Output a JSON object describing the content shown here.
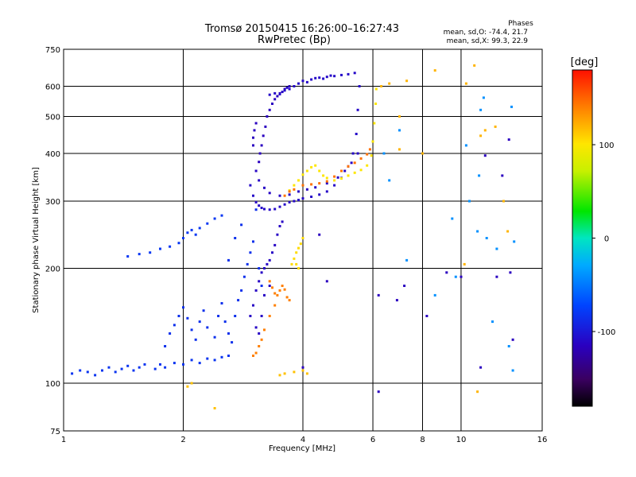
{
  "colors": {
    "background": "#ffffff",
    "grid": "#000000"
  },
  "chart_data": {
    "type": "scatter",
    "title": "Tromsø 20150415 16:26:00–16:27:43",
    "subtitle": "RwPretec (Bp)",
    "xlabel": "Frequency [MHz]",
    "ylabel": "Stationary phase Virtual Height [km]",
    "x_scale": "log",
    "y_scale": "log",
    "xlim": [
      1,
      16
    ],
    "ylim": [
      75,
      750
    ],
    "x_ticks": [
      1,
      2,
      4,
      6,
      8,
      10,
      16
    ],
    "x_tick_labels": [
      "1",
      "2",
      "4",
      "6",
      "8",
      "10",
      "16"
    ],
    "y_ticks": [
      75,
      100,
      200,
      300,
      400,
      500,
      600,
      750
    ],
    "y_tick_labels": [
      "75",
      "100",
      "200",
      "300",
      "400",
      "500",
      "600",
      "750"
    ],
    "grid": true,
    "stats": {
      "heading": "Phases",
      "line1": "mean, sd,O:  -74.4, 21.7",
      "line2": "mean, sd,X:  99.3, 22.9"
    },
    "colorbar": {
      "label": "[deg]",
      "range": [
        -180,
        180
      ],
      "tick_values": [
        100,
        0,
        -100
      ],
      "tick_labels": [
        "100",
        "0",
        "-100"
      ]
    },
    "traces": [
      {
        "kind": "o_bottom",
        "phase": -82,
        "points": [
          [
            1.05,
            106
          ],
          [
            1.1,
            108
          ],
          [
            1.15,
            107
          ],
          [
            1.2,
            105
          ],
          [
            1.25,
            108
          ],
          [
            1.3,
            110
          ],
          [
            1.35,
            107
          ],
          [
            1.4,
            109
          ],
          [
            1.45,
            111
          ],
          [
            1.5,
            108
          ],
          [
            1.55,
            110
          ],
          [
            1.6,
            112
          ],
          [
            1.7,
            109
          ],
          [
            1.75,
            112
          ],
          [
            1.8,
            110
          ],
          [
            1.9,
            113
          ],
          [
            2.0,
            112
          ],
          [
            2.1,
            115
          ],
          [
            2.2,
            113
          ],
          [
            2.3,
            116
          ],
          [
            2.4,
            115
          ],
          [
            2.5,
            117
          ],
          [
            2.6,
            118
          ]
        ]
      },
      {
        "kind": "o_low_spread",
        "phase": -85,
        "points": [
          [
            1.8,
            125
          ],
          [
            1.85,
            135
          ],
          [
            1.9,
            142
          ],
          [
            1.95,
            150
          ],
          [
            2.0,
            158
          ],
          [
            2.05,
            148
          ],
          [
            2.1,
            138
          ],
          [
            2.15,
            130
          ],
          [
            2.2,
            145
          ],
          [
            2.25,
            155
          ],
          [
            2.3,
            140
          ],
          [
            2.4,
            132
          ],
          [
            2.45,
            150
          ],
          [
            2.5,
            162
          ],
          [
            2.55,
            145
          ],
          [
            2.6,
            135
          ],
          [
            2.65,
            128
          ],
          [
            2.7,
            150
          ],
          [
            2.75,
            165
          ],
          [
            2.8,
            175
          ],
          [
            2.85,
            190
          ],
          [
            2.9,
            205
          ],
          [
            2.95,
            220
          ],
          [
            3.0,
            235
          ],
          [
            2.7,
            240
          ],
          [
            2.6,
            210
          ],
          [
            2.8,
            260
          ],
          [
            3.05,
            285
          ],
          [
            3.1,
            200
          ],
          [
            3.15,
            180
          ]
        ]
      },
      {
        "kind": "o_sporadic",
        "phase": -80,
        "points": [
          [
            1.45,
            215
          ],
          [
            1.55,
            218
          ],
          [
            1.65,
            220
          ],
          [
            1.75,
            225
          ],
          [
            1.85,
            228
          ],
          [
            1.95,
            233
          ],
          [
            2.0,
            240
          ],
          [
            2.05,
            248
          ],
          [
            2.1,
            252
          ],
          [
            2.15,
            245
          ],
          [
            2.2,
            255
          ],
          [
            2.3,
            262
          ],
          [
            2.4,
            270
          ],
          [
            2.5,
            275
          ]
        ]
      },
      {
        "kind": "o_f2_low",
        "phase": -110,
        "points": [
          [
            2.95,
            330
          ],
          [
            3.0,
            310
          ],
          [
            3.05,
            298
          ],
          [
            3.1,
            292
          ],
          [
            3.15,
            288
          ],
          [
            3.2,
            286
          ],
          [
            3.3,
            285
          ],
          [
            3.4,
            286
          ],
          [
            3.5,
            290
          ],
          [
            3.6,
            294
          ],
          [
            3.7,
            298
          ],
          [
            3.8,
            300
          ],
          [
            3.9,
            302
          ],
          [
            4.0,
            305
          ],
          [
            4.2,
            308
          ],
          [
            4.4,
            312
          ],
          [
            4.6,
            318
          ],
          [
            4.8,
            330
          ],
          [
            5.0,
            345
          ],
          [
            5.2,
            370
          ],
          [
            5.35,
            400
          ],
          [
            5.45,
            450
          ],
          [
            5.5,
            520
          ],
          [
            5.55,
            600
          ]
        ]
      },
      {
        "kind": "o_f2_mid",
        "phase": -112,
        "points": [
          [
            3.05,
            360
          ],
          [
            3.1,
            340
          ],
          [
            3.2,
            325
          ],
          [
            3.3,
            315
          ],
          [
            3.5,
            310
          ],
          [
            3.7,
            312
          ],
          [
            3.9,
            318
          ],
          [
            4.1,
            322
          ],
          [
            4.3,
            326
          ],
          [
            4.6,
            334
          ],
          [
            4.9,
            346
          ],
          [
            5.1,
            360
          ],
          [
            5.3,
            378
          ],
          [
            5.5,
            400
          ]
        ]
      },
      {
        "kind": "o_f2_vert",
        "phase": -115,
        "points": [
          [
            3.0,
            420
          ],
          [
            3.0,
            440
          ],
          [
            3.02,
            460
          ],
          [
            3.05,
            480
          ],
          [
            3.1,
            380
          ],
          [
            3.12,
            400
          ],
          [
            3.15,
            420
          ],
          [
            3.18,
            445
          ],
          [
            3.22,
            470
          ],
          [
            3.25,
            500
          ],
          [
            3.3,
            520
          ],
          [
            3.35,
            540
          ],
          [
            3.4,
            555
          ],
          [
            3.45,
            565
          ],
          [
            3.5,
            575
          ],
          [
            3.6,
            590
          ],
          [
            3.7,
            600
          ]
        ]
      },
      {
        "kind": "o_top",
        "phase": -110,
        "points": [
          [
            3.3,
            570
          ],
          [
            3.4,
            575
          ],
          [
            3.5,
            572
          ],
          [
            3.55,
            580
          ],
          [
            3.6,
            585
          ],
          [
            3.65,
            595
          ],
          [
            3.7,
            590
          ],
          [
            3.8,
            600
          ],
          [
            3.9,
            610
          ],
          [
            4.0,
            620
          ],
          [
            4.1,
            615
          ],
          [
            4.2,
            625
          ],
          [
            4.3,
            630
          ],
          [
            4.4,
            632
          ],
          [
            4.5,
            628
          ],
          [
            4.6,
            635
          ],
          [
            4.7,
            640
          ],
          [
            4.8,
            638
          ],
          [
            5.0,
            642
          ],
          [
            5.2,
            645
          ],
          [
            5.4,
            650
          ]
        ]
      },
      {
        "kind": "o_e_column",
        "phase": -112,
        "points": [
          [
            2.95,
            150
          ],
          [
            3.0,
            160
          ],
          [
            3.05,
            175
          ],
          [
            3.1,
            185
          ],
          [
            3.15,
            195
          ],
          [
            3.2,
            200
          ],
          [
            3.25,
            205
          ],
          [
            3.3,
            210
          ],
          [
            3.35,
            220
          ],
          [
            3.4,
            230
          ],
          [
            3.45,
            245
          ],
          [
            3.5,
            258
          ],
          [
            3.55,
            265
          ],
          [
            3.2,
            170
          ],
          [
            3.3,
            180
          ],
          [
            3.15,
            150
          ],
          [
            3.1,
            135
          ],
          [
            3.05,
            140
          ]
        ]
      },
      {
        "kind": "x_f2",
        "phase": 100,
        "points": [
          [
            3.7,
            320
          ],
          [
            3.8,
            330
          ],
          [
            3.9,
            340
          ],
          [
            4.0,
            352
          ],
          [
            4.1,
            360
          ],
          [
            4.2,
            368
          ],
          [
            4.3,
            372
          ],
          [
            4.4,
            360
          ],
          [
            4.5,
            350
          ],
          [
            4.6,
            345
          ],
          [
            4.8,
            340
          ],
          [
            5.0,
            344
          ],
          [
            5.2,
            350
          ],
          [
            5.4,
            356
          ],
          [
            5.6,
            362
          ],
          [
            5.8,
            372
          ],
          [
            5.95,
            395
          ],
          [
            6.0,
            430
          ],
          [
            6.05,
            480
          ],
          [
            6.1,
            540
          ],
          [
            6.12,
            590
          ]
        ]
      },
      {
        "kind": "x_f2_orange",
        "phase": 145,
        "points": [
          [
            3.6,
            310
          ],
          [
            3.7,
            318
          ],
          [
            3.8,
            322
          ],
          [
            4.0,
            330
          ],
          [
            4.2,
            332
          ],
          [
            4.4,
            334
          ],
          [
            4.6,
            338
          ],
          [
            4.8,
            348
          ],
          [
            5.0,
            360
          ],
          [
            5.2,
            370
          ],
          [
            5.4,
            378
          ],
          [
            5.6,
            388
          ],
          [
            5.8,
            398
          ],
          [
            5.9,
            410
          ]
        ]
      },
      {
        "kind": "x_e_orange",
        "phase": 140,
        "points": [
          [
            3.3,
            185
          ],
          [
            3.35,
            178
          ],
          [
            3.4,
            172
          ],
          [
            3.45,
            170
          ],
          [
            3.5,
            175
          ],
          [
            3.55,
            180
          ],
          [
            3.6,
            176
          ],
          [
            3.65,
            168
          ],
          [
            3.7,
            165
          ],
          [
            3.4,
            160
          ],
          [
            3.3,
            150
          ],
          [
            3.2,
            138
          ],
          [
            3.15,
            130
          ],
          [
            3.1,
            125
          ],
          [
            3.05,
            120
          ],
          [
            3.0,
            118
          ]
        ]
      },
      {
        "kind": "x_yellow_mid",
        "phase": 105,
        "points": [
          [
            3.75,
            205
          ],
          [
            3.8,
            212
          ],
          [
            3.85,
            220
          ],
          [
            3.9,
            226
          ],
          [
            3.95,
            232
          ],
          [
            4.0,
            240
          ],
          [
            3.85,
            205
          ],
          [
            3.9,
            200
          ]
        ]
      },
      {
        "kind": "x_low",
        "phase": 115,
        "points": [
          [
            3.5,
            105
          ],
          [
            3.6,
            106
          ],
          [
            3.8,
            107
          ],
          [
            4.0,
            108
          ],
          [
            4.1,
            106
          ],
          [
            2.1,
            100
          ],
          [
            2.05,
            98
          ],
          [
            2.4,
            86
          ]
        ]
      },
      {
        "kind": "scatter_far",
        "phase": -40,
        "points": [
          [
            6.4,
            400
          ],
          [
            6.6,
            340
          ],
          [
            7.0,
            460
          ],
          [
            7.3,
            210
          ],
          [
            8.6,
            170
          ],
          [
            9.5,
            270
          ],
          [
            9.7,
            190
          ],
          [
            10.3,
            420
          ],
          [
            10.5,
            300
          ],
          [
            11.0,
            250
          ],
          [
            11.1,
            350
          ],
          [
            11.2,
            520
          ],
          [
            11.4,
            560
          ],
          [
            11.6,
            240
          ],
          [
            12.0,
            145
          ],
          [
            12.3,
            225
          ],
          [
            13.2,
            125
          ],
          [
            13.5,
            108
          ],
          [
            13.6,
            235
          ],
          [
            13.4,
            530
          ]
        ]
      },
      {
        "kind": "scatter_far_o",
        "phase": -115,
        "points": [
          [
            6.2,
            170
          ],
          [
            6.9,
            165
          ],
          [
            7.2,
            180
          ],
          [
            8.2,
            150
          ],
          [
            9.2,
            195
          ],
          [
            10.0,
            190
          ],
          [
            11.5,
            395
          ],
          [
            12.3,
            190
          ],
          [
            12.7,
            350
          ],
          [
            13.2,
            435
          ],
          [
            13.3,
            195
          ],
          [
            13.5,
            130
          ],
          [
            11.2,
            110
          ],
          [
            6.2,
            95
          ],
          [
            4.0,
            110
          ],
          [
            4.4,
            245
          ],
          [
            4.6,
            185
          ]
        ]
      },
      {
        "kind": "scatter_far_x",
        "phase": 120,
        "points": [
          [
            6.3,
            600
          ],
          [
            6.6,
            610
          ],
          [
            7.0,
            500
          ],
          [
            7.3,
            620
          ],
          [
            8.6,
            660
          ],
          [
            10.3,
            610
          ],
          [
            10.8,
            680
          ],
          [
            11.2,
            445
          ],
          [
            11.5,
            460
          ],
          [
            12.2,
            470
          ],
          [
            12.8,
            300
          ],
          [
            13.1,
            250
          ],
          [
            11.0,
            95
          ],
          [
            10.2,
            205
          ],
          [
            7.0,
            410
          ],
          [
            8.0,
            400
          ]
        ]
      }
    ]
  }
}
